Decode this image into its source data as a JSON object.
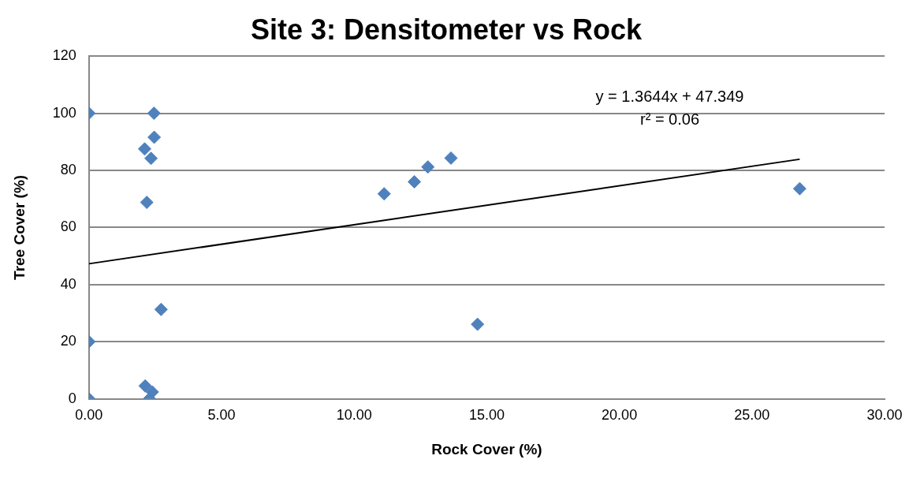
{
  "chart_data": {
    "type": "scatter",
    "title": "Site 3: Densitometer vs Rock",
    "xlabel": "Rock Cover (%)",
    "ylabel": "Tree Cover (%)",
    "xlim": [
      0,
      30
    ],
    "xticks": [
      {
        "value": 0,
        "label": "0.00"
      },
      {
        "value": 5,
        "label": "5.00"
      },
      {
        "value": 10,
        "label": "10.00"
      },
      {
        "value": 15,
        "label": "15.00"
      },
      {
        "value": 20,
        "label": "20.00"
      },
      {
        "value": 25,
        "label": "25.00"
      },
      {
        "value": 30,
        "label": "30.00"
      }
    ],
    "ylim": [
      0,
      120
    ],
    "yticks": [
      0,
      20,
      40,
      60,
      80,
      100,
      120
    ],
    "grid": "y",
    "marker": "diamond",
    "annotations": [
      "y = 1.3644x + 47.349",
      "r² = 0.06"
    ],
    "series": [
      {
        "color": "#4f81bd",
        "x": [
          0,
          2.45,
          2.46,
          2.1,
          2.34,
          2.18,
          2.72,
          0,
          2.12,
          2.39,
          2.28,
          0,
          11.13,
          12.27,
          12.78,
          13.65,
          14.65,
          26.8
        ],
        "values": [
          100,
          100,
          91.6,
          87.5,
          84.2,
          68.8,
          31.3,
          20,
          4.5,
          2.4,
          0,
          0,
          71.8,
          76,
          81.2,
          84.3,
          26.1,
          73.6
        ]
      },
      {
        "type": "line",
        "color": "#000000",
        "marker": "none",
        "x": [
          0,
          26.8
        ],
        "values": [
          47.3,
          83.9
        ]
      }
    ]
  }
}
